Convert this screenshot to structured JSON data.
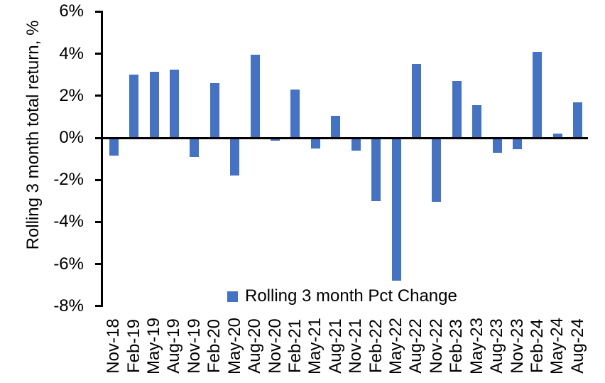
{
  "chart_data": {
    "type": "bar",
    "title": "",
    "xlabel": "",
    "ylabel": "Rolling 3 month total return, %",
    "legend": [
      "Rolling 3 month Pct Change"
    ],
    "legend_position": "bottom-center",
    "grid": false,
    "ylim": [
      -8,
      6
    ],
    "ytick_step": 2,
    "ytick_format": "percent",
    "bar_color": "#4472C4",
    "axis_color": "#000000",
    "categories": [
      "Nov-18",
      "Feb-19",
      "May-19",
      "Aug-19",
      "Nov-19",
      "Feb-20",
      "May-20",
      "Aug-20",
      "Nov-20",
      "Feb-21",
      "May-21",
      "Aug-21",
      "Nov-21",
      "Feb-22",
      "May-22",
      "Aug-22",
      "Nov-22",
      "Feb-23",
      "May-23",
      "Aug-23",
      "Nov-23",
      "Feb-24",
      "May-24",
      "Aug-24"
    ],
    "series": [
      {
        "name": "Rolling 3 month Pct Change",
        "values": [
          -0.85,
          3.0,
          3.15,
          3.25,
          -0.9,
          2.6,
          -1.8,
          3.95,
          -0.15,
          2.3,
          -0.5,
          1.05,
          -0.6,
          -3.0,
          -6.8,
          3.5,
          -3.05,
          2.7,
          1.55,
          -0.7,
          -0.55,
          4.1,
          0.2,
          1.7
        ]
      }
    ]
  }
}
